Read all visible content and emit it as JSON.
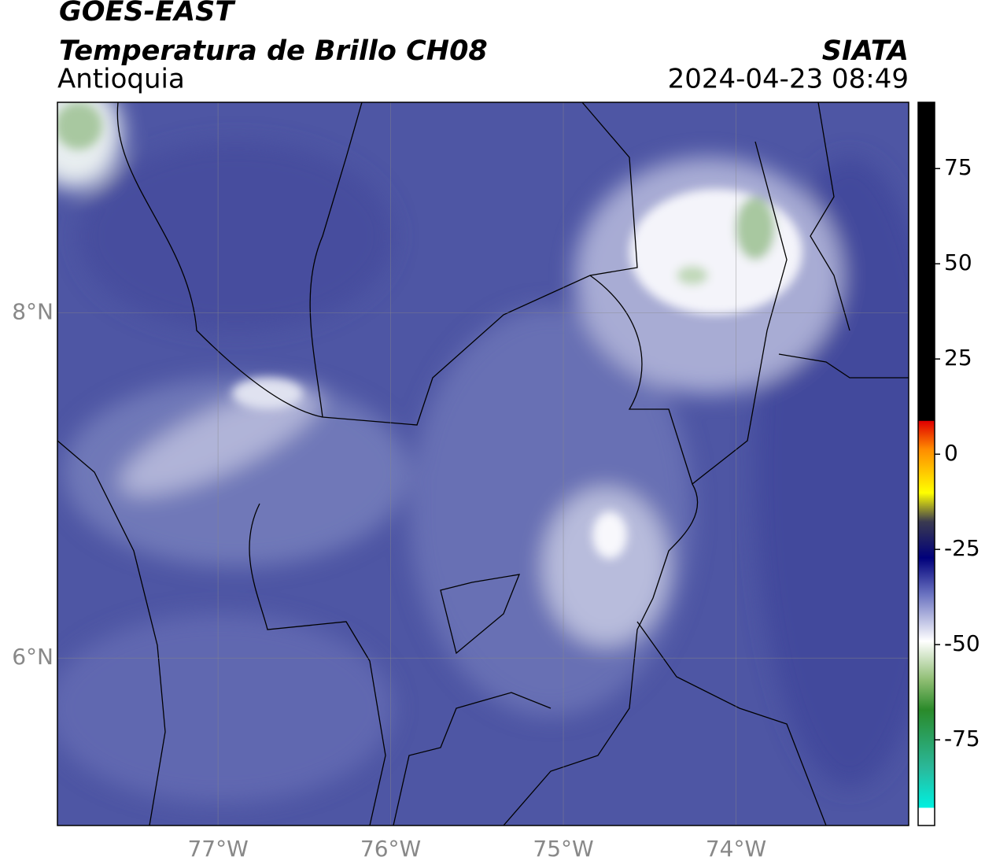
{
  "header": {
    "title": "GOES-EAST",
    "subtitle": "Temperatura de Brillo CH08",
    "region": "Antioquia",
    "source": "SIATA",
    "datetime": "2024-04-23 08:49"
  },
  "map": {
    "lonlim": [
      -77.93,
      -73.0
    ],
    "latlim": [
      5.03,
      9.22
    ],
    "xticks": [
      {
        "value": -77,
        "label": "77°W"
      },
      {
        "value": -76,
        "label": "76°W"
      },
      {
        "value": -75,
        "label": "75°W"
      },
      {
        "value": -74,
        "label": "74°W"
      }
    ],
    "yticks": [
      {
        "value": 8,
        "label": "8°N"
      },
      {
        "value": 6,
        "label": "6°N"
      }
    ],
    "grid": true
  },
  "colorbar": {
    "lim": [
      -97.5,
      92.4
    ],
    "ticks": [
      75,
      50,
      25,
      0,
      -25,
      -50,
      -75
    ]
  }
}
